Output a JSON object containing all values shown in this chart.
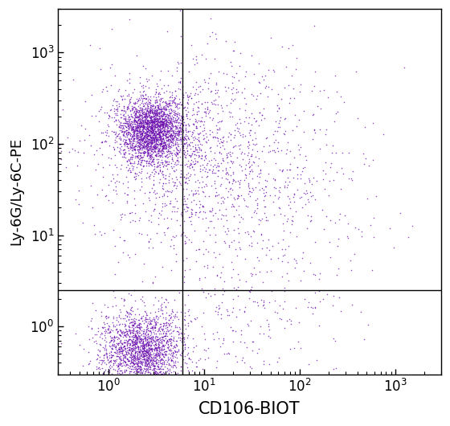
{
  "title": "",
  "xlabel": "CD106-BIOT",
  "ylabel": "Ly-6G/Ly-6C-PE",
  "xlim": [
    0.3,
    3000
  ],
  "ylim": [
    0.3,
    3000
  ],
  "dot_color": "#6A0DAD",
  "dot_alpha": 0.75,
  "dot_size": 1.2,
  "gate_x": 6.0,
  "gate_y": 2.5,
  "clusters": [
    {
      "name": "upper_left_core",
      "n": 2500,
      "center_x_log": 0.45,
      "center_y_log": 2.15,
      "std_x_log": 0.18,
      "std_y_log": 0.18
    },
    {
      "name": "upper_right_tail",
      "n": 1200,
      "center_x_log": 0.9,
      "center_y_log": 1.9,
      "std_x_log": 0.55,
      "std_y_log": 0.5
    },
    {
      "name": "middle_scatter",
      "n": 300,
      "center_x_log": 1.5,
      "center_y_log": 1.2,
      "std_x_log": 0.6,
      "std_y_log": 0.7
    },
    {
      "name": "lower_left_core",
      "n": 2000,
      "center_x_log": 0.35,
      "center_y_log": -0.25,
      "std_x_log": 0.22,
      "std_y_log": 0.22
    },
    {
      "name": "lower_right_scatter",
      "n": 200,
      "center_x_log": 1.2,
      "center_y_log": -0.1,
      "std_x_log": 0.6,
      "std_y_log": 0.4
    },
    {
      "name": "far_right_sparse",
      "n": 150,
      "center_x_log": 2.0,
      "center_y_log": 1.5,
      "std_x_log": 0.5,
      "std_y_log": 0.8
    }
  ],
  "background_color": "#ffffff",
  "xlabel_fontsize": 15,
  "ylabel_fontsize": 13,
  "tick_fontsize": 12
}
